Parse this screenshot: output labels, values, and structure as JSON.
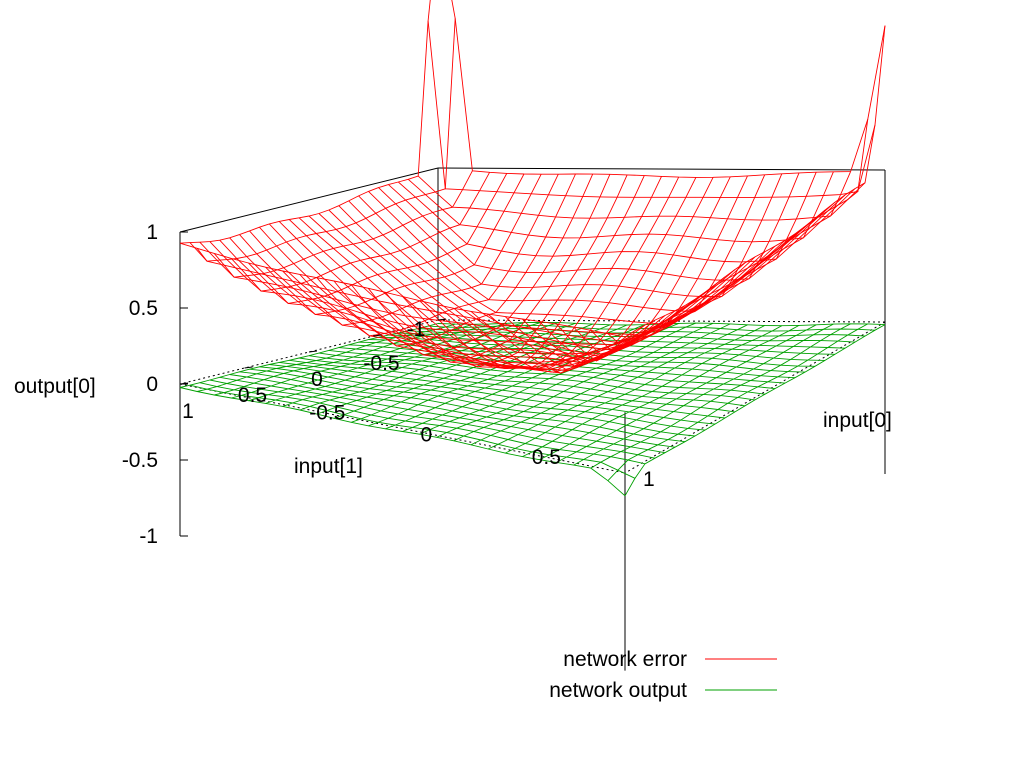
{
  "chart_data": {
    "type": "surface",
    "title": "",
    "xlabel": "input[0]",
    "ylabel": "input[1]",
    "zlabel": "output[0]",
    "xlim": [
      -1,
      1
    ],
    "ylim": [
      -1,
      1
    ],
    "zlim": [
      -1,
      1
    ],
    "x_ticks": [
      -1,
      -0.5,
      0,
      0.5,
      1
    ],
    "y_ticks": [
      -1,
      -0.5,
      0,
      0.5,
      1
    ],
    "z_ticks": [
      -1,
      -0.5,
      0,
      0.5,
      1
    ],
    "x_tick_labels": [
      "-0.5",
      "0",
      "0.5",
      "1"
    ],
    "y_tick_labels": [
      "-1",
      "-0.5",
      "0",
      "0.5",
      "1"
    ],
    "z_tick_labels": [
      "-1",
      "-0.5",
      "0",
      "0.5",
      "1"
    ],
    "grid_resolution": 26,
    "legend_position": "bottom-right",
    "series": [
      {
        "name": "network error",
        "color": "#ff0000",
        "description_shape": "bowl",
        "center_value": 0.05,
        "corner_values": {
          "x-1_y-1": 1.0,
          "x1_y-1": 1.0,
          "x1_y1": 0.9,
          "x-1_y1": 0.92
        },
        "spikes": [
          {
            "x": -1,
            "y": -1,
            "z": 2.6
          },
          {
            "x": 1,
            "y": -1,
            "z": 1.95
          },
          {
            "x": 0.95,
            "y": -0.95,
            "z": 1.2
          },
          {
            "x": -0.9,
            "y": 1,
            "z": 1.08
          }
        ]
      },
      {
        "name": "network output",
        "color": "#00a000",
        "description_shape": "nearly flat plane",
        "value": -0.02,
        "edge_dip": {
          "x": 1,
          "y": 1,
          "z": -0.15
        }
      }
    ]
  }
}
